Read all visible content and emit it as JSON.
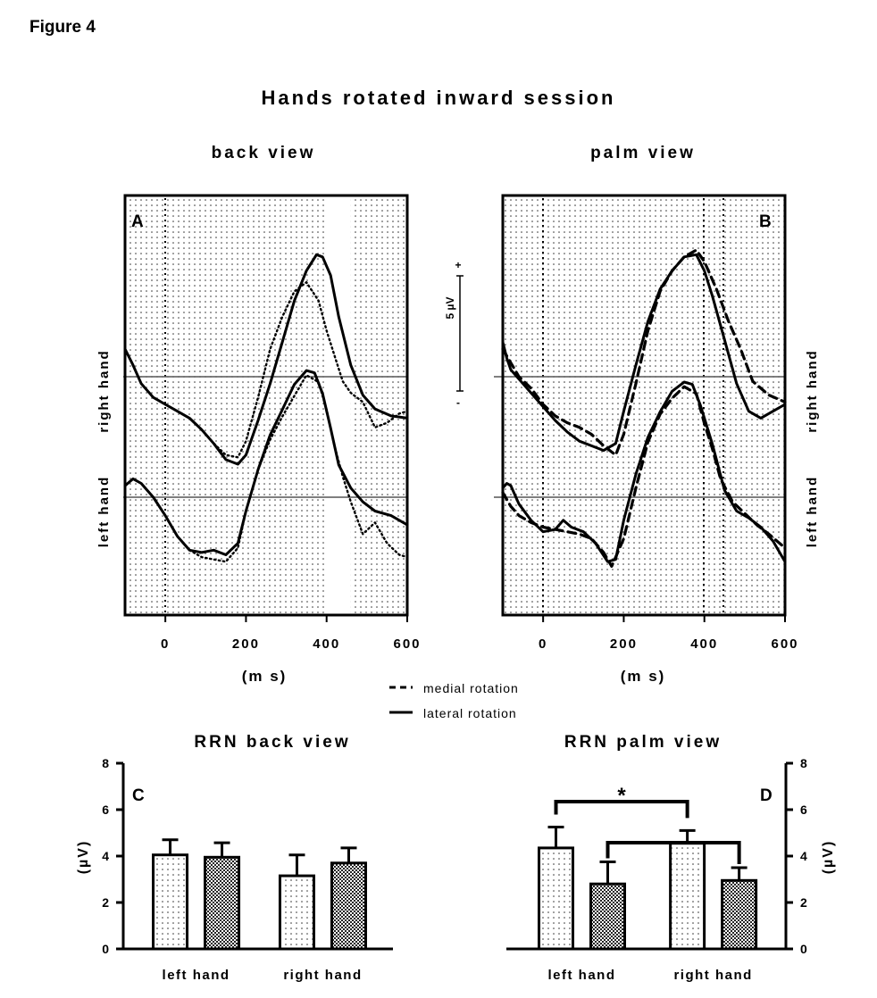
{
  "figure_label": "Figure 4",
  "main_title": "Hands rotated inward session",
  "legend": {
    "medial": "medial rotation",
    "lateral": "lateral rotation"
  },
  "scale_bar": {
    "label": "5 µV",
    "plus": "+",
    "minus": "-"
  },
  "chart_data": [
    {
      "type": "line",
      "panel": "A",
      "title": "back view",
      "xlabel": "(m s)",
      "xlim": [
        -100,
        600
      ],
      "xticks": [
        0,
        200,
        400,
        600
      ],
      "channels": [
        "right hand",
        "left hand"
      ],
      "channel_label_side": "left",
      "onset_marker_ms": 0,
      "shaded_ms": [
        [
          -100,
          400
        ],
        [
          460,
          600
        ]
      ],
      "y_units": "µV (relative to channel baseline)",
      "series": [
        {
          "name": "lateral rotation",
          "channel": "right hand",
          "style": "solid",
          "x": [
            -100,
            -80,
            -60,
            -30,
            0,
            30,
            60,
            90,
            120,
            150,
            180,
            200,
            230,
            260,
            290,
            320,
            350,
            375,
            390,
            410,
            430,
            460,
            490,
            520,
            560,
            600
          ],
          "y": [
            1.2,
            0.5,
            -0.3,
            -0.9,
            -1.2,
            -1.5,
            -1.8,
            -2.3,
            -2.9,
            -3.6,
            -3.8,
            -3.4,
            -1.9,
            -0.3,
            1.5,
            3.3,
            4.6,
            5.3,
            5.2,
            4.4,
            2.6,
            0.5,
            -0.8,
            -1.4,
            -1.7,
            -1.8
          ]
        },
        {
          "name": "medial rotation",
          "channel": "right hand",
          "style": "dotted",
          "x": [
            -100,
            -80,
            -60,
            -30,
            0,
            30,
            60,
            90,
            120,
            150,
            180,
            200,
            230,
            260,
            290,
            320,
            350,
            380,
            400,
            420,
            440,
            460,
            490,
            520,
            550,
            580,
            600
          ],
          "y": [
            1.2,
            0.5,
            -0.3,
            -0.9,
            -1.2,
            -1.5,
            -1.8,
            -2.3,
            -2.9,
            -3.4,
            -3.5,
            -2.8,
            -0.9,
            1.2,
            2.6,
            3.7,
            4.1,
            3.3,
            2.0,
            0.9,
            -0.2,
            -0.7,
            -1.1,
            -2.2,
            -2.0,
            -1.6,
            -1.5
          ]
        },
        {
          "name": "lateral rotation",
          "channel": "left hand",
          "style": "solid",
          "x": [
            -100,
            -80,
            -60,
            -30,
            0,
            30,
            60,
            90,
            120,
            150,
            180,
            200,
            230,
            260,
            290,
            320,
            350,
            370,
            390,
            410,
            430,
            460,
            490,
            520,
            560,
            600
          ],
          "y": [
            0.5,
            0.8,
            0.6,
            0.0,
            -0.8,
            -1.7,
            -2.3,
            -2.4,
            -2.3,
            -2.5,
            -2.0,
            -0.6,
            1.2,
            2.7,
            3.8,
            4.9,
            5.5,
            5.4,
            4.5,
            3.0,
            1.4,
            0.4,
            -0.2,
            -0.6,
            -0.8,
            -1.2
          ]
        },
        {
          "name": "medial rotation",
          "channel": "left hand",
          "style": "dotted",
          "x": [
            -100,
            -80,
            -60,
            -30,
            0,
            30,
            60,
            90,
            120,
            150,
            180,
            200,
            230,
            260,
            290,
            320,
            350,
            380,
            400,
            420,
            440,
            460,
            490,
            520,
            550,
            580,
            600
          ],
          "y": [
            0.5,
            0.8,
            0.6,
            0.0,
            -0.8,
            -1.7,
            -2.3,
            -2.6,
            -2.7,
            -2.8,
            -2.2,
            -0.6,
            1.2,
            2.5,
            3.5,
            4.4,
            5.3,
            5.0,
            3.8,
            2.2,
            0.9,
            -0.2,
            -1.6,
            -1.1,
            -2.0,
            -2.5,
            -2.6
          ]
        }
      ]
    },
    {
      "type": "line",
      "panel": "B",
      "title": "palm view",
      "xlabel": "(m s)",
      "xlim": [
        -100,
        600
      ],
      "xticks": [
        0,
        200,
        400,
        600
      ],
      "channels": [
        "right hand",
        "left hand"
      ],
      "channel_label_side": "right",
      "onset_marker_ms": 0,
      "dotted_markers_ms": [
        0,
        400,
        450
      ],
      "shaded_ms": [
        [
          -100,
          600
        ]
      ],
      "y_units": "µV (relative to channel baseline)",
      "series": [
        {
          "name": "lateral rotation",
          "channel": "right hand",
          "style": "solid",
          "x": [
            -100,
            -90,
            -80,
            -60,
            -30,
            0,
            30,
            60,
            90,
            120,
            150,
            180,
            200,
            230,
            260,
            290,
            320,
            350,
            380,
            400,
            420,
            450,
            480,
            510,
            540,
            570,
            600
          ],
          "y": [
            1.5,
            0.8,
            0.3,
            -0.1,
            -0.7,
            -1.3,
            -1.9,
            -2.4,
            -2.8,
            -3.0,
            -3.2,
            -2.9,
            -1.5,
            0.5,
            2.4,
            3.8,
            4.6,
            5.2,
            5.3,
            4.6,
            3.5,
            1.6,
            -0.3,
            -1.5,
            -1.8,
            -1.5,
            -1.2
          ]
        },
        {
          "name": "medial rotation",
          "channel": "right hand",
          "style": "dashed",
          "x": [
            -100,
            -80,
            -60,
            -30,
            0,
            30,
            60,
            90,
            120,
            150,
            180,
            200,
            230,
            260,
            290,
            320,
            350,
            380,
            400,
            430,
            460,
            490,
            520,
            560,
            600
          ],
          "y": [
            1.2,
            0.6,
            0.0,
            -0.5,
            -1.2,
            -1.7,
            -2.0,
            -2.2,
            -2.5,
            -3.0,
            -3.4,
            -2.5,
            -0.3,
            2.0,
            3.7,
            4.6,
            5.2,
            5.5,
            5.0,
            3.8,
            2.4,
            1.2,
            -0.2,
            -0.8,
            -1.1
          ]
        },
        {
          "name": "lateral rotation",
          "channel": "left hand",
          "style": "solid",
          "x": [
            -100,
            -90,
            -80,
            -60,
            -30,
            0,
            30,
            50,
            70,
            100,
            130,
            160,
            180,
            200,
            230,
            260,
            290,
            320,
            350,
            370,
            390,
            420,
            450,
            480,
            510,
            540,
            570,
            600
          ],
          "y": [
            0.4,
            0.6,
            0.5,
            -0.3,
            -1.0,
            -1.5,
            -1.4,
            -1.0,
            -1.3,
            -1.5,
            -2.0,
            -2.8,
            -2.7,
            -1.0,
            1.0,
            2.6,
            3.7,
            4.6,
            5.0,
            4.9,
            4.0,
            2.3,
            0.3,
            -0.6,
            -0.9,
            -1.3,
            -1.9,
            -2.8
          ]
        },
        {
          "name": "medial rotation",
          "channel": "left hand",
          "style": "dashed",
          "x": [
            -100,
            -80,
            -60,
            -30,
            0,
            30,
            60,
            90,
            120,
            150,
            170,
            200,
            230,
            260,
            290,
            320,
            350,
            380,
            400,
            420,
            440,
            470,
            500,
            530,
            560,
            600
          ],
          "y": [
            0.2,
            -0.4,
            -0.8,
            -1.1,
            -1.3,
            -1.4,
            -1.5,
            -1.6,
            -1.8,
            -2.4,
            -3.0,
            -1.8,
            0.4,
            2.4,
            3.6,
            4.3,
            4.8,
            4.5,
            3.2,
            2.1,
            0.8,
            -0.2,
            -0.7,
            -1.2,
            -1.6,
            -2.2
          ]
        }
      ]
    },
    {
      "type": "bar",
      "panel": "C",
      "title": "RRN back view",
      "ylabel": "(µV)",
      "ylim": [
        0,
        8
      ],
      "yticks": [
        0,
        2,
        4,
        6,
        8
      ],
      "categories": [
        "left hand",
        "right hand"
      ],
      "series": [
        {
          "name": "medial rotation",
          "pattern": "dotted",
          "values": [
            4.05,
            3.15
          ],
          "errors": [
            0.65,
            0.9
          ]
        },
        {
          "name": "lateral rotation",
          "pattern": "checkered",
          "values": [
            3.95,
            3.7
          ],
          "errors": [
            0.62,
            0.65
          ]
        }
      ]
    },
    {
      "type": "bar",
      "panel": "D",
      "title": "RRN palm view",
      "ylabel": "(µV)",
      "ylim": [
        0,
        8
      ],
      "yticks": [
        0,
        2,
        4,
        6,
        8
      ],
      "categories": [
        "left hand",
        "right hand"
      ],
      "series": [
        {
          "name": "medial rotation",
          "pattern": "dotted",
          "values": [
            4.35,
            4.55
          ],
          "errors": [
            0.9,
            0.55
          ]
        },
        {
          "name": "lateral rotation",
          "pattern": "checkered",
          "values": [
            2.8,
            2.95
          ],
          "errors": [
            0.95,
            0.55
          ]
        }
      ],
      "significance": "*"
    }
  ]
}
